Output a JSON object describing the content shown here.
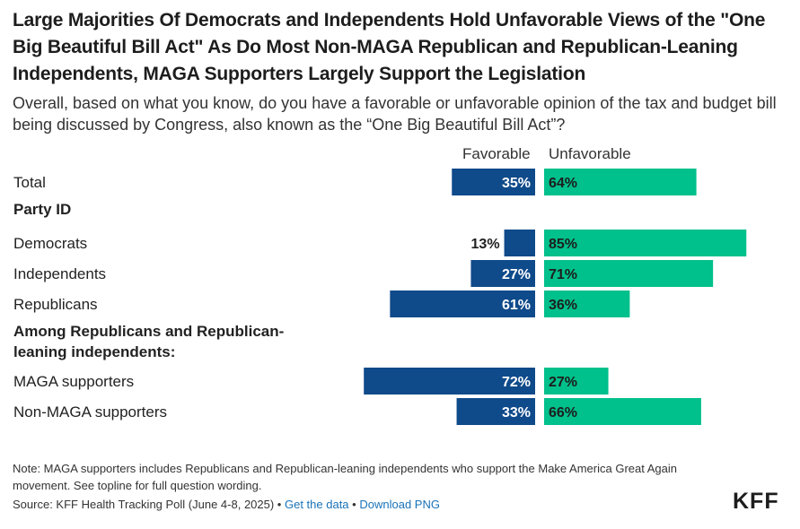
{
  "title": "Large Majorities Of Democrats and Independents Hold Unfavorable Views of the \"One Big Beautiful Bill Act\" As Do Most Non-MAGA Republican and Republican-Leaning Independents, MAGA Supporters Largely Support the Legislation",
  "subtitle": "Overall, based on what you know, do you have a favorable or unfavorable opinion of the tax and budget bill being discussed by Congress, also known as the “One Big Beautiful Bill Act”?",
  "colors": {
    "favorable": "#0f4a8a",
    "unfavorable": "#00c08b"
  },
  "chart_data": {
    "type": "bar",
    "title": "Large Majorities Of Democrats and Independents Hold Unfavorable Views of the \"One Big Beautiful Bill Act\" As Do Most Non-MAGA Republican and Republican-Leaning Independents, MAGA Supporters Largely Support the Legislation",
    "series_names": [
      "Favorable",
      "Unfavorable"
    ],
    "rows": [
      {
        "kind": "data",
        "label": "Total",
        "favorable": 35,
        "unfavorable": 64
      },
      {
        "kind": "section",
        "lines": [
          "Party ID"
        ]
      },
      {
        "kind": "data",
        "label": "Democrats",
        "favorable": 13,
        "unfavorable": 85
      },
      {
        "kind": "data",
        "label": "Independents",
        "favorable": 27,
        "unfavorable": 71
      },
      {
        "kind": "data",
        "label": "Republicans",
        "favorable": 61,
        "unfavorable": 36
      },
      {
        "kind": "section",
        "lines": [
          "Among Republicans and Republican-",
          "leaning independents:"
        ]
      },
      {
        "kind": "data",
        "label": "MAGA supporters",
        "favorable": 72,
        "unfavorable": 27
      },
      {
        "kind": "data",
        "label": "Non-MAGA supporters",
        "favorable": 33,
        "unfavorable": 66
      }
    ],
    "value_suffix": "%"
  },
  "note": "Note: MAGA supporters includes Republicans and Republican-leaning independents who support the Make America Great Again movement. See topline for full question wording.",
  "source": {
    "text": "Source: KFF Health Tracking Poll (June 4-8, 2025) •",
    "separator": "•",
    "get_data": "Get the data",
    "download": "Download PNG"
  },
  "logo": "KFF"
}
